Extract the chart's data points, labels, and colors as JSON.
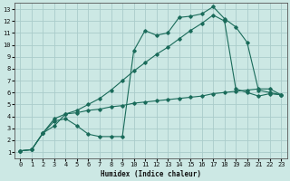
{
  "xlabel": "Humidex (Indice chaleur)",
  "ylabel": "",
  "bg_color": "#cce8e4",
  "grid_color": "#aaccca",
  "line_color": "#1a6b5a",
  "xlim": [
    -0.5,
    23.5
  ],
  "ylim": [
    0.5,
    13.5
  ],
  "xticks": [
    0,
    1,
    2,
    3,
    4,
    5,
    6,
    7,
    8,
    9,
    10,
    11,
    12,
    13,
    14,
    15,
    16,
    17,
    18,
    19,
    20,
    21,
    22,
    23
  ],
  "yticks": [
    1,
    2,
    3,
    4,
    5,
    6,
    7,
    8,
    9,
    10,
    11,
    12,
    13
  ],
  "line1_x": [
    0,
    1,
    2,
    3,
    4,
    5,
    6,
    7,
    8,
    9,
    10,
    11,
    12,
    13,
    14,
    15,
    16,
    17,
    18,
    19,
    20,
    21,
    22,
    23
  ],
  "line1_y": [
    1.1,
    1.2,
    2.6,
    3.6,
    3.8,
    3.2,
    2.5,
    2.3,
    2.3,
    2.3,
    9.5,
    11.2,
    10.8,
    11.0,
    12.3,
    12.4,
    12.6,
    13.2,
    12.2,
    11.5,
    10.2,
    6.2,
    6.0,
    5.8
  ],
  "line2_x": [
    0,
    1,
    2,
    3,
    4,
    5,
    6,
    7,
    8,
    9,
    10,
    11,
    12,
    13,
    14,
    15,
    16,
    17,
    18,
    19,
    20,
    21,
    22,
    23
  ],
  "line2_y": [
    1.1,
    1.2,
    2.6,
    3.8,
    4.2,
    4.3,
    4.5,
    4.6,
    4.8,
    4.9,
    5.1,
    5.2,
    5.3,
    5.4,
    5.5,
    5.6,
    5.7,
    5.9,
    6.0,
    6.1,
    6.2,
    6.3,
    6.3,
    5.8
  ],
  "line3_x": [
    0,
    1,
    2,
    3,
    4,
    5,
    6,
    7,
    8,
    9,
    10,
    11,
    12,
    13,
    14,
    15,
    16,
    17,
    18,
    19,
    20,
    21,
    22,
    23
  ],
  "line3_y": [
    1.1,
    1.2,
    2.6,
    3.2,
    4.2,
    4.5,
    5.0,
    5.5,
    6.2,
    7.0,
    7.8,
    8.5,
    9.2,
    9.8,
    10.5,
    11.2,
    11.8,
    12.5,
    12.0,
    6.3,
    6.0,
    5.7,
    5.9,
    5.8
  ]
}
